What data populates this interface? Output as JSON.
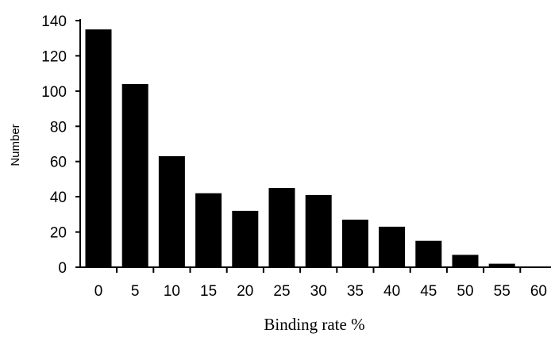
{
  "chart_data": {
    "type": "bar",
    "categories": [
      "0",
      "5",
      "10",
      "15",
      "20",
      "25",
      "30",
      "35",
      "40",
      "45",
      "50",
      "55",
      "60"
    ],
    "values": [
      135,
      104,
      63,
      42,
      32,
      45,
      41,
      27,
      23,
      15,
      7,
      2,
      0
    ],
    "xlabel": "Binding rate %",
    "ylabel": "Number",
    "ylim": [
      0,
      140
    ],
    "yticks": [
      0,
      20,
      40,
      60,
      80,
      100,
      120,
      140
    ],
    "grid": false,
    "bar_color": "#000000"
  }
}
